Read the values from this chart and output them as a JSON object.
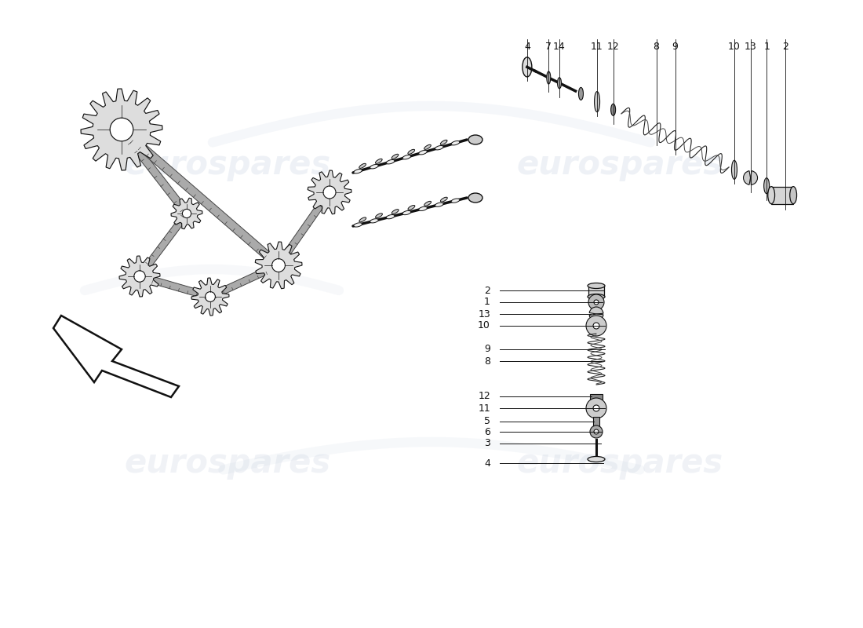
{
  "background_color": "#ffffff",
  "diagram_color": "#111111",
  "watermark_text": "eurospares",
  "watermark_color": "#c5d0e0",
  "watermark_alpha": 0.3,
  "part_numbers_left": [
    "2",
    "1",
    "13",
    "10",
    "9",
    "8",
    "12",
    "11",
    "5",
    "6",
    "3"
  ],
  "part_numbers_bottom": [
    "4",
    "7",
    "14",
    "11",
    "12",
    "8",
    "9",
    "10",
    "13",
    "1",
    "2"
  ],
  "label_fontsize": 9
}
